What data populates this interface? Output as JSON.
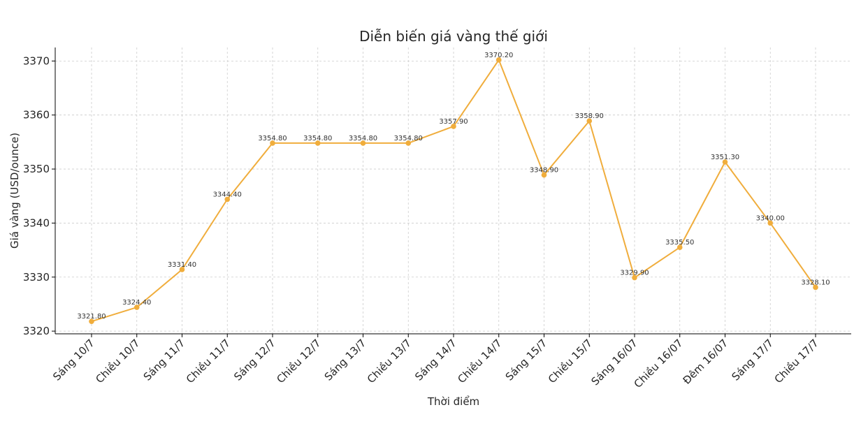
{
  "chart_data": {
    "type": "line",
    "title": "Diễn biến giá vàng thế giới",
    "xlabel": "Thời điểm",
    "ylabel": "Giá vàng (USD/ounce)",
    "ylim": [
      3319.5,
      3372.5
    ],
    "yticks": [
      3320,
      3330,
      3340,
      3350,
      3360,
      3370
    ],
    "grid": true,
    "categories": [
      "Sáng 10/7",
      "Chiều 10/7",
      "Sáng 11/7",
      "Chiều 11/7",
      "Sáng 12/7",
      "Chiều 12/7",
      "Sáng 13/7",
      "Chiều 13/7",
      "Sáng 14/7",
      "Chiều 14/7",
      "Sáng 15/7",
      "Chiều 15/7",
      "Sáng 16/07",
      "Chiều 16/07",
      "Đêm 16/07",
      "Sáng 17/7",
      "Chiều 17/7"
    ],
    "series": [
      {
        "values": [
          3321.8,
          3324.4,
          3331.4,
          3344.4,
          3354.8,
          3354.8,
          3354.8,
          3354.8,
          3357.9,
          3370.2,
          3348.9,
          3358.9,
          3329.9,
          3335.5,
          3351.3,
          3340.0,
          3328.1
        ],
        "labels": [
          "3321.80",
          "3324.40",
          "3331.40",
          "3344.40",
          "3354.80",
          "3354.80",
          "3354.80",
          "3354.80",
          "3357.90",
          "3370.20",
          "3348.90",
          "3358.90",
          "3329.90",
          "3335.50",
          "3351.30",
          "3340.00",
          "3328.10"
        ],
        "color": "#f0ad3c"
      }
    ]
  }
}
